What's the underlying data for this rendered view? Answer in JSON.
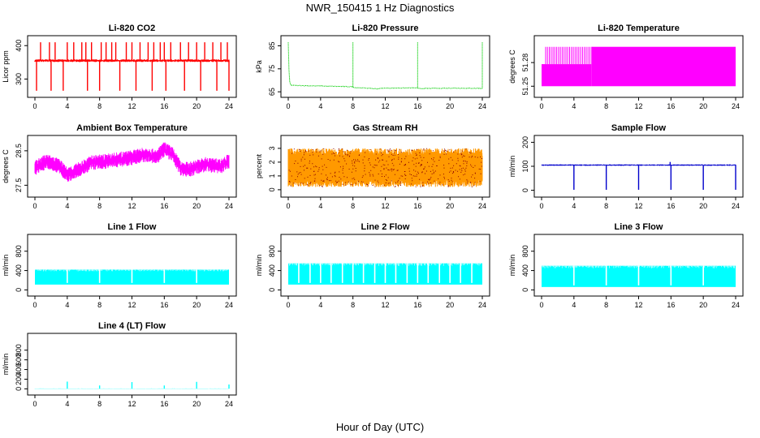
{
  "figure": {
    "title": "NWR_150415  1 Hz Diagnostics",
    "xlabel": "Hour of Day (UTC)"
  },
  "chart_data": [
    {
      "type": "line",
      "title": "Li-820 CO2",
      "ylabel": "Licor ppm",
      "color": "#ff0000",
      "xlim": [
        0,
        24
      ],
      "x_ticks": [
        0,
        4,
        8,
        12,
        16,
        20,
        24
      ],
      "ylim": [
        255,
        420
      ],
      "y_ticks": [
        300,
        400
      ],
      "baseline": 355,
      "noise": 4,
      "style": "spikes",
      "spikes_up": [
        0.7,
        1.8,
        2.5,
        4.0,
        4.8,
        5.8,
        6.3,
        7.0,
        8.2,
        8.8,
        9.5,
        10.0,
        11.3,
        12.0,
        13.0,
        14.0,
        14.7,
        15.5,
        16.0,
        16.8,
        18.0,
        19.0,
        20.0,
        21.0,
        22.0,
        23.0,
        23.8
      ],
      "spike_up_value": 410,
      "spikes_down": [
        0.2,
        2.0,
        3.5,
        6.5,
        8.0,
        10.5,
        12.5,
        14.5,
        16.2,
        18.5,
        20.5,
        22.5,
        24.0
      ],
      "spike_down_value": 265
    },
    {
      "type": "line",
      "title": "Li-820 Pressure",
      "ylabel": "kPa",
      "color": "#00cc00",
      "xlim": [
        0,
        24
      ],
      "x_ticks": [
        0,
        4,
        8,
        12,
        16,
        20,
        24
      ],
      "ylim": [
        64,
        88
      ],
      "y_ticks": [
        65,
        75,
        85
      ],
      "points": [
        [
          0,
          86.5
        ],
        [
          0.05,
          78
        ],
        [
          0.15,
          70
        ],
        [
          0.3,
          67.8
        ],
        [
          3,
          67.6
        ],
        [
          7.9,
          67.2
        ],
        [
          8.1,
          66.9
        ],
        [
          11,
          66.3
        ],
        [
          12,
          66.6
        ],
        [
          15.9,
          66.7
        ],
        [
          16.1,
          66.4
        ],
        [
          20,
          66.6
        ],
        [
          24,
          66.5
        ]
      ],
      "spikes_up": [
        8.0,
        16.0,
        24.0
      ],
      "spike_up_value": 86.5,
      "style": "dotted-spikes"
    },
    {
      "type": "line",
      "title": "Li-820 Temperature",
      "ylabel": "degrees C",
      "color": "#ff00ff",
      "xlim": [
        0,
        24
      ],
      "x_ticks": [
        0,
        4,
        8,
        12,
        16,
        20,
        24
      ],
      "ylim": [
        51.24,
        51.31
      ],
      "y_ticks": [
        51.25,
        51.28
      ],
      "low": 51.25,
      "high": 51.3,
      "mid": 51.278,
      "fill_from": 6.2,
      "style": "square-wave"
    },
    {
      "type": "line",
      "title": "Ambient Box Temperature",
      "ylabel": "degrees C",
      "color": "#ff00ff",
      "xlim": [
        0,
        24
      ],
      "x_ticks": [
        0,
        4,
        8,
        12,
        16,
        20,
        24
      ],
      "ylim": [
        27.25,
        28.85
      ],
      "y_ticks": [
        27.5,
        28.5
      ],
      "points": [
        [
          0,
          28.0
        ],
        [
          1.5,
          28.2
        ],
        [
          3,
          28.05
        ],
        [
          4,
          27.8
        ],
        [
          5,
          27.9
        ],
        [
          7,
          28.15
        ],
        [
          9,
          28.2
        ],
        [
          12,
          28.3
        ],
        [
          14,
          28.4
        ],
        [
          15,
          28.3
        ],
        [
          16,
          28.55
        ],
        [
          17,
          28.4
        ],
        [
          18,
          28.0
        ],
        [
          19,
          27.95
        ],
        [
          21,
          28.1
        ],
        [
          23,
          28.05
        ],
        [
          24,
          28.2
        ]
      ],
      "noise": 0.22,
      "style": "band"
    },
    {
      "type": "line",
      "title": "Gas Stream RH",
      "ylabel": "percent",
      "color": "#ff9900",
      "xlim": [
        0,
        24
      ],
      "x_ticks": [
        0,
        4,
        8,
        12,
        16,
        20,
        24
      ],
      "ylim": [
        -0.3,
        3.7
      ],
      "y_ticks": [
        0,
        1,
        2,
        3
      ],
      "baseline": 1.6,
      "noise": 1.4,
      "style": "band-dotted",
      "dot_color": "#8b0000"
    },
    {
      "type": "line",
      "title": "Sample Flow",
      "ylabel": "ml/min",
      "color": "#0000cc",
      "xlim": [
        0,
        24
      ],
      "x_ticks": [
        0,
        4,
        8,
        12,
        16,
        20,
        24
      ],
      "ylim": [
        -15,
        215
      ],
      "y_ticks": [
        0,
        100,
        200
      ],
      "baseline": 105,
      "noise": 3,
      "spikes_down": [
        4.0,
        8.0,
        12.0,
        16.0,
        20.0,
        24.0
      ],
      "spike_down_value": 2,
      "spikes_up": [
        15.9
      ],
      "spike_up_value": 118,
      "style": "spikes"
    },
    {
      "type": "line",
      "title": "Line 1 Flow",
      "ylabel": "ml/min",
      "color": "#00ffff",
      "xlim": [
        0,
        24
      ],
      "x_ticks": [
        0,
        4,
        8,
        12,
        16,
        20,
        24
      ],
      "ylim": [
        -60,
        1080
      ],
      "y_ticks": [
        0,
        400,
        800
      ],
      "low": 110,
      "high": 420,
      "gaps": [
        4,
        8,
        12,
        16,
        20
      ],
      "style": "band"
    },
    {
      "type": "line",
      "title": "Line 2 Flow",
      "ylabel": "ml/min",
      "color": "#00ffff",
      "xlim": [
        0,
        24
      ],
      "x_ticks": [
        0,
        4,
        8,
        12,
        16,
        20,
        24
      ],
      "ylim": [
        -60,
        1080
      ],
      "y_ticks": [
        0,
        400,
        800
      ],
      "low": 110,
      "high": 550,
      "gaps": [
        1.3,
        2.7,
        4,
        5.3,
        6.7,
        8,
        9.3,
        10.7,
        12,
        13.3,
        14.7,
        16,
        17.3,
        18.7,
        20,
        21.3,
        22.7
      ],
      "style": "band"
    },
    {
      "type": "line",
      "title": "Line 3 Flow",
      "ylabel": "ml/min",
      "color": "#00ffff",
      "xlim": [
        0,
        24
      ],
      "x_ticks": [
        0,
        4,
        8,
        12,
        16,
        20,
        24
      ],
      "ylim": [
        -60,
        1080
      ],
      "y_ticks": [
        0,
        400,
        800
      ],
      "low": 60,
      "high": 500,
      "gaps": [
        4,
        8,
        12,
        16,
        20
      ],
      "style": "band"
    },
    {
      "type": "line",
      "title": "Line 4 (LT) Flow",
      "ylabel": "ml/min",
      "color": "#00ffff",
      "xlim": [
        0,
        24
      ],
      "x_ticks": [
        0,
        4,
        8,
        12,
        16,
        20,
        24
      ],
      "ylim": [
        -60,
        1080
      ],
      "y_ticks": [
        0,
        200,
        400,
        600,
        800
      ],
      "baseline": 5,
      "noise": 3,
      "spikes_up": [
        4.0,
        8.0,
        12.0,
        16.0,
        20.0,
        24.0
      ],
      "spike_up_values": [
        150,
        70,
        140,
        70,
        145,
        90
      ],
      "style": "spikes"
    }
  ]
}
